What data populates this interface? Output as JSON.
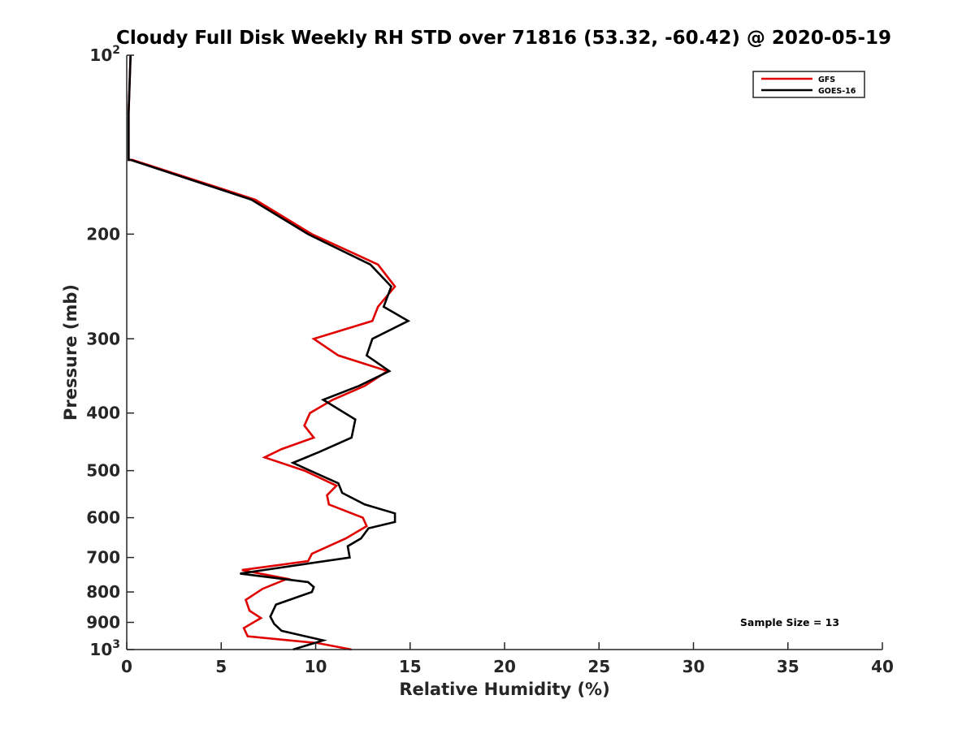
{
  "chart_data": {
    "type": "line",
    "title": "Cloudy Full Disk Weekly RH STD over 71816 (53.32, -60.42) @ 2020-05-19",
    "xlabel": "Relative Humidity (%)",
    "ylabel": "Pressure (mb)",
    "xlim": [
      0,
      40
    ],
    "ylim": [
      100,
      1000
    ],
    "y_scale": "log",
    "y_reversed": true,
    "x_ticks": [
      0,
      5,
      10,
      15,
      20,
      25,
      30,
      35,
      40
    ],
    "x_tick_labels": [
      "0",
      "5",
      "10",
      "15",
      "20",
      "25",
      "30",
      "35",
      "40"
    ],
    "y_ticks": [
      100,
      200,
      300,
      400,
      500,
      600,
      700,
      800,
      900,
      1000
    ],
    "y_tick_labels": [
      "10²",
      "200",
      "300",
      "400",
      "500",
      "600",
      "700",
      "800",
      "900",
      "10³"
    ],
    "grid": false,
    "legend_position": "top-right",
    "annotation": "Sample Size = 13",
    "series": [
      {
        "name": "GFS",
        "color": "#e00000",
        "points": [
          [
            0.2,
            100
          ],
          [
            0.1,
            125
          ],
          [
            0.1,
            150
          ],
          [
            0.3,
            150
          ],
          [
            6.8,
            175
          ],
          [
            9.8,
            200
          ],
          [
            13.3,
            225
          ],
          [
            14.2,
            245
          ],
          [
            13.3,
            265
          ],
          [
            13.0,
            280
          ],
          [
            9.9,
            300
          ],
          [
            11.2,
            320
          ],
          [
            13.8,
            340
          ],
          [
            12.6,
            360
          ],
          [
            10.9,
            380
          ],
          [
            9.7,
            400
          ],
          [
            9.4,
            420
          ],
          [
            9.9,
            440
          ],
          [
            8.2,
            460
          ],
          [
            7.3,
            475
          ],
          [
            9.4,
            500
          ],
          [
            11.1,
            530
          ],
          [
            10.6,
            550
          ],
          [
            10.7,
            570
          ],
          [
            12.5,
            600
          ],
          [
            12.7,
            620
          ],
          [
            11.6,
            650
          ],
          [
            9.8,
            690
          ],
          [
            9.6,
            710
          ],
          [
            6.1,
            735
          ],
          [
            8.5,
            760
          ],
          [
            7.2,
            790
          ],
          [
            6.3,
            825
          ],
          [
            6.5,
            860
          ],
          [
            7.1,
            885
          ],
          [
            6.2,
            920
          ],
          [
            6.4,
            950
          ],
          [
            10.1,
            975
          ],
          [
            11.9,
            1000
          ]
        ]
      },
      {
        "name": "GOES-16",
        "color": "#000000",
        "points": [
          [
            0.2,
            100
          ],
          [
            0.1,
            125
          ],
          [
            0.1,
            150
          ],
          [
            0.2,
            150
          ],
          [
            6.6,
            175
          ],
          [
            9.6,
            200
          ],
          [
            12.9,
            225
          ],
          [
            14.0,
            245
          ],
          [
            13.6,
            265
          ],
          [
            14.9,
            280
          ],
          [
            13.0,
            300
          ],
          [
            12.7,
            320
          ],
          [
            13.9,
            340
          ],
          [
            12.3,
            360
          ],
          [
            10.4,
            380
          ],
          [
            12.1,
            410
          ],
          [
            11.9,
            440
          ],
          [
            10.2,
            465
          ],
          [
            8.8,
            485
          ],
          [
            9.7,
            500
          ],
          [
            11.2,
            525
          ],
          [
            11.4,
            545
          ],
          [
            12.6,
            570
          ],
          [
            14.2,
            590
          ],
          [
            14.2,
            610
          ],
          [
            12.8,
            625
          ],
          [
            12.4,
            650
          ],
          [
            11.7,
            670
          ],
          [
            11.8,
            700
          ],
          [
            6.0,
            745
          ],
          [
            9.6,
            770
          ],
          [
            9.9,
            785
          ],
          [
            9.8,
            800
          ],
          [
            7.9,
            840
          ],
          [
            7.6,
            880
          ],
          [
            7.8,
            905
          ],
          [
            8.2,
            930
          ],
          [
            10.4,
            965
          ],
          [
            8.8,
            1000
          ]
        ]
      }
    ]
  }
}
